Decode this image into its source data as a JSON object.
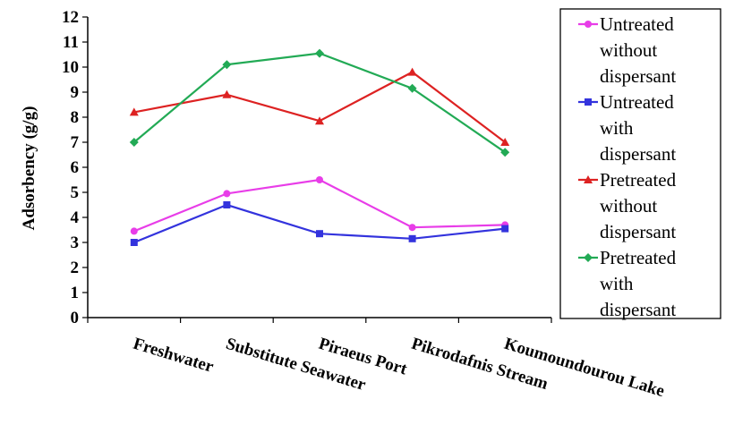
{
  "chart_data": {
    "type": "line",
    "title": "",
    "xlabel": "",
    "ylabel": "Adsorbency (g/g)",
    "ylim": [
      0,
      12
    ],
    "yticks": [
      "0",
      "1",
      "2",
      "3",
      "4",
      "5",
      "6",
      "7",
      "8",
      "9",
      "10",
      "11",
      "12"
    ],
    "grid": false,
    "legend_position": "right",
    "categories": [
      "Freshwater",
      "Substitute Seawater",
      "Piraeus Port",
      "Pikrodafnis Stream",
      "Koumoundourou Lake"
    ],
    "series": [
      {
        "name": "Untreated without dispersant",
        "legend_lines": [
          "Untreated",
          "without",
          "dispersant"
        ],
        "color": "#e83de8",
        "marker": "circle",
        "values": [
          3.45,
          4.95,
          5.5,
          3.6,
          3.7
        ]
      },
      {
        "name": "Untreated with dispersant",
        "legend_lines": [
          "Untreated",
          "with",
          "dispersant"
        ],
        "color": "#3333dd",
        "marker": "square",
        "values": [
          3.0,
          4.5,
          3.35,
          3.15,
          3.55
        ]
      },
      {
        "name": "Pretreated without dispersant",
        "legend_lines": [
          "Pretreated",
          "without",
          "dispersant"
        ],
        "color": "#dd2222",
        "marker": "triangle",
        "values": [
          8.2,
          8.9,
          7.85,
          9.8,
          7.0
        ]
      },
      {
        "name": "Pretreated with dispersant",
        "legend_lines": [
          "Pretreated",
          "with",
          "dispersant"
        ],
        "color": "#22aa55",
        "marker": "diamond",
        "values": [
          7.0,
          10.1,
          10.55,
          9.15,
          6.6
        ]
      }
    ]
  }
}
